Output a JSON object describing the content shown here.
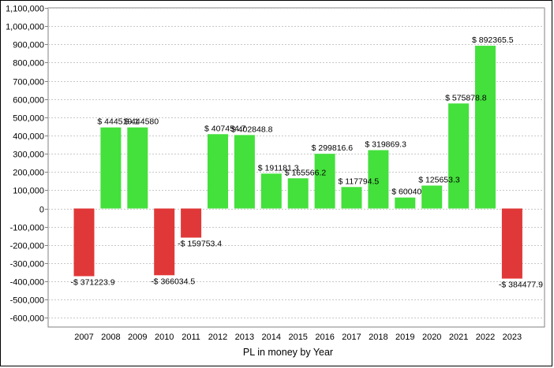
{
  "chart_data": {
    "type": "bar",
    "title": "",
    "xlabel": "PL in money by Year",
    "ylabel": "",
    "categories": [
      "2007",
      "2008",
      "2009",
      "2010",
      "2011",
      "2012",
      "2013",
      "2014",
      "2015",
      "2016",
      "2017",
      "2018",
      "2019",
      "2020",
      "2021",
      "2022",
      "2023"
    ],
    "values": [
      -371223.9,
      444519.1,
      444580,
      -366034.5,
      -159753.4,
      407454.7,
      402848.8,
      191181.3,
      165566.2,
      299816.6,
      117794.5,
      319869.3,
      60040,
      125653.3,
      575878.8,
      892365.5,
      -384477.9
    ],
    "data_labels": [
      "-$ 371223.9",
      "$ 444519.1",
      "$ 444580",
      "-$ 366034.5",
      "-$ 159753.4",
      "$ 407454.7",
      "$ 402848.8",
      "$ 191181.3",
      "$ 165566.2",
      "$ 299816.6",
      "$ 117794.5",
      "$ 319869.3",
      "$ 60040",
      "$ 125653.3",
      "$ 575878.8",
      "$ 892365.5",
      "-$ 384477.9"
    ],
    "ylim": [
      -650000,
      1100000
    ],
    "yticks": [
      -600000,
      -500000,
      -400000,
      -300000,
      -200000,
      -100000,
      0,
      100000,
      200000,
      300000,
      400000,
      500000,
      600000,
      700000,
      800000,
      900000,
      1000000,
      1100000
    ],
    "ytick_labels": [
      "-600,000",
      "-500,000",
      "-400,000",
      "-300,000",
      "-200,000",
      "-100,000",
      "0",
      "100,000",
      "200,000",
      "300,000",
      "400,000",
      "500,000",
      "600,000",
      "700,000",
      "800,000",
      "900,000",
      "1,000,000",
      "1,100,000"
    ],
    "grid": true,
    "colors": {
      "positive": "#44e03c",
      "negative": "#e03838",
      "grid": "#c8c8c8",
      "axis": "#808080"
    }
  }
}
